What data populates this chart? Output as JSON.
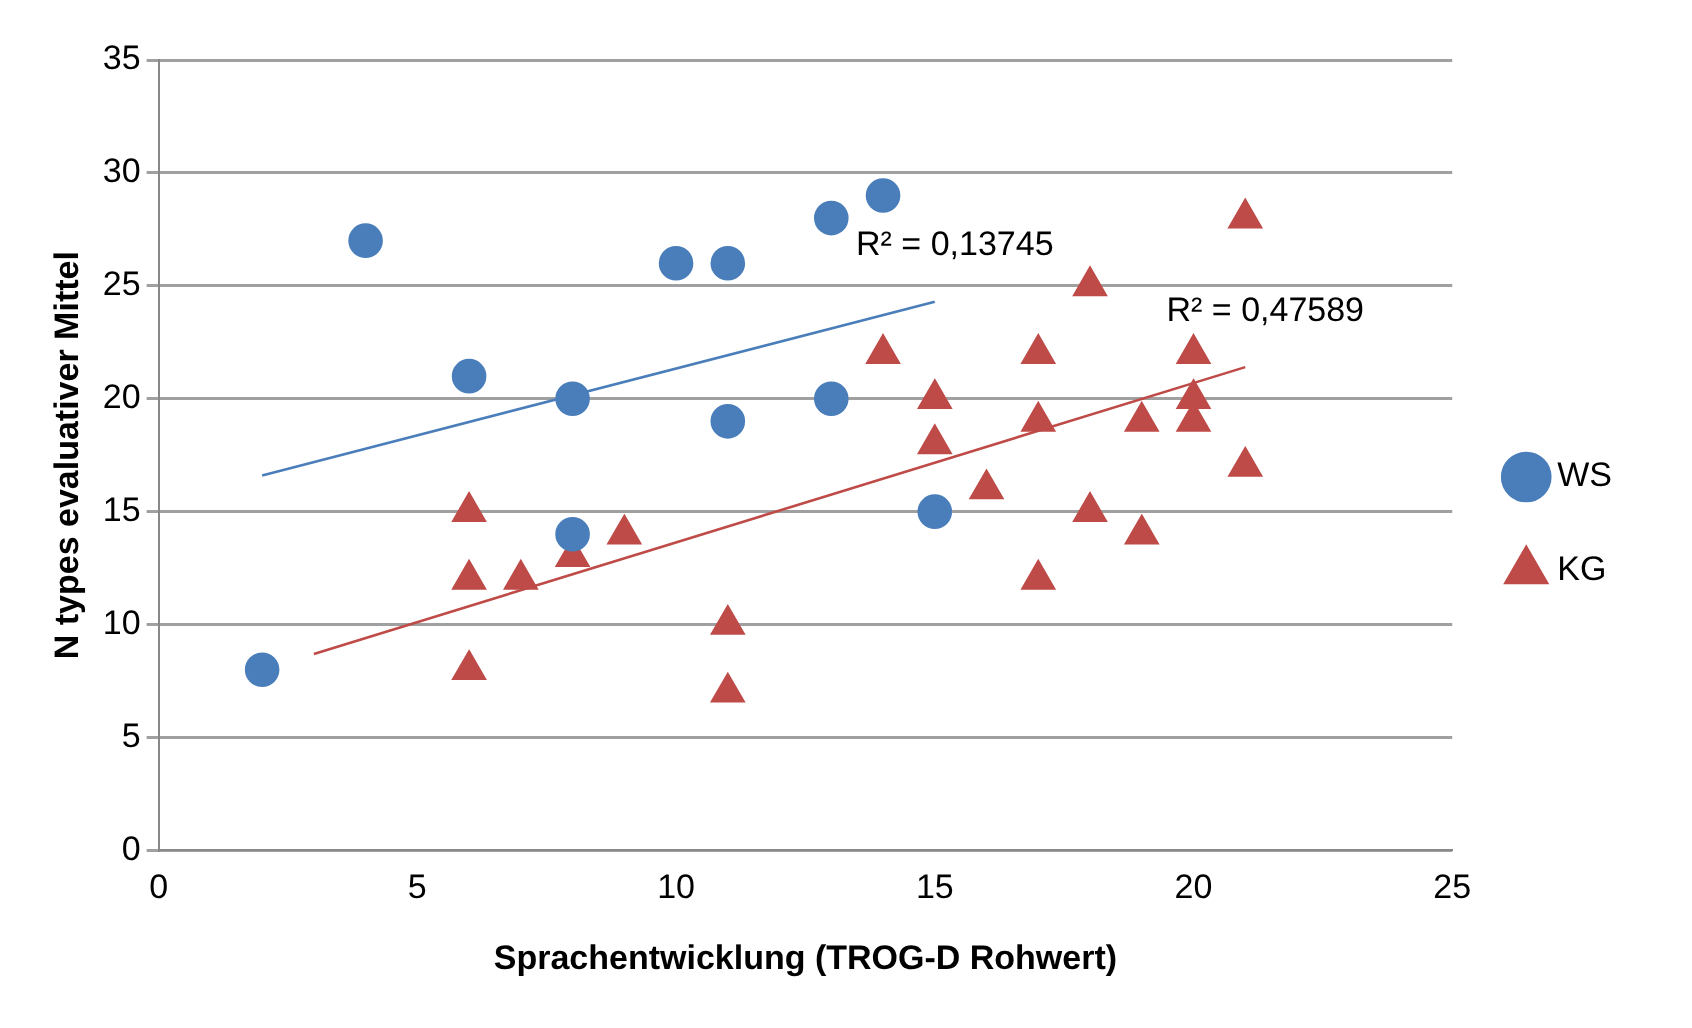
{
  "chart_data": {
    "type": "scatter",
    "xlabel": "Sprachentwicklung (TROG-D Rohwert)",
    "ylabel": "N types evaluativer Mittel",
    "xlim": [
      0,
      25
    ],
    "xticks": [
      0,
      5,
      10,
      15,
      20,
      25
    ],
    "ylim": [
      0,
      35
    ],
    "yticks": [
      0,
      5,
      10,
      15,
      20,
      25,
      30,
      35
    ],
    "grid": "y",
    "legend": "right",
    "series": [
      {
        "name": "WS",
        "color": "#4a7ebb",
        "marker": "circle",
        "x": [
          2,
          4,
          6,
          8,
          8,
          10,
          11,
          11,
          13,
          13,
          14,
          15
        ],
        "values": [
          8,
          27,
          21,
          20,
          14,
          26,
          26,
          19,
          28,
          20,
          29,
          15
        ]
      },
      {
        "name": "KG",
        "color": "#be4b48",
        "marker": "triangle",
        "x": [
          6,
          6,
          6,
          7,
          8,
          9,
          11,
          11,
          14,
          15,
          15,
          16,
          17,
          17,
          17,
          18,
          18,
          19,
          19,
          20,
          20,
          20,
          21,
          21
        ],
        "values": [
          15,
          12,
          8,
          12,
          13,
          14,
          10,
          7,
          22,
          20,
          18,
          16,
          22,
          19,
          12,
          25,
          15,
          19,
          14,
          22,
          20,
          19,
          28,
          17
        ]
      },
      {
        "type": "line",
        "color": "#4a7ebb",
        "marker": "none",
        "x": [
          2,
          15
        ],
        "values": [
          16.6,
          24.3
        ]
      },
      {
        "type": "line",
        "color": "#be4b48",
        "marker": "none",
        "x": [
          3,
          21
        ],
        "values": [
          8.7,
          21.4
        ]
      }
    ],
    "annotations": [
      "R² = 0,13745",
      "R² = 0,47589"
    ]
  }
}
